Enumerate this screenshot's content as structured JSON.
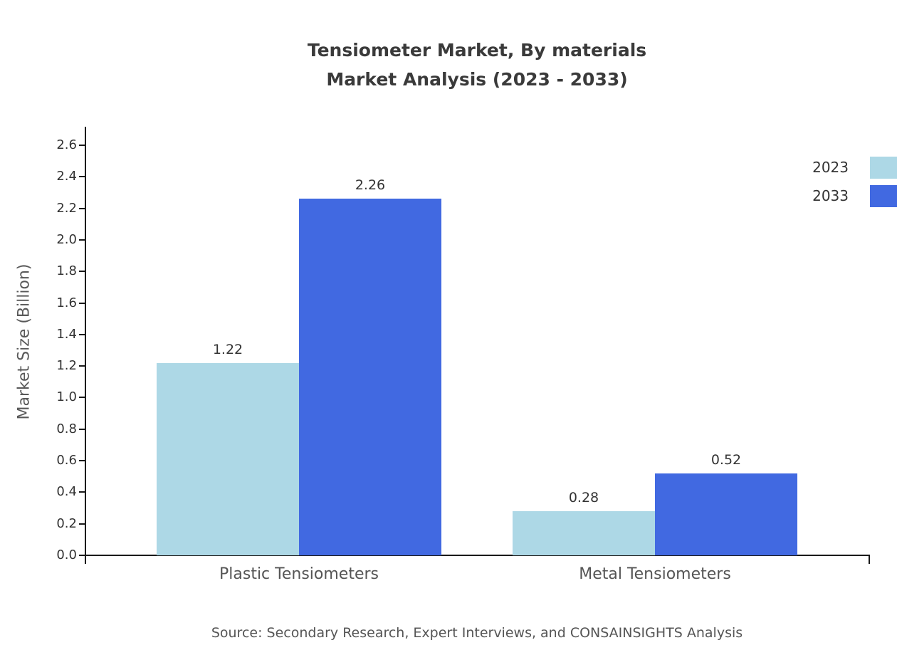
{
  "title": {
    "line1": "Tensiometer Market, By materials",
    "line2": "Market Analysis (2023 - 2033)"
  },
  "source": "Source: Secondary Research, Expert Interviews, and CONSAINSIGHTS Analysis",
  "chart_data": {
    "type": "bar",
    "title": "Tensiometer Market, By materials — Market Analysis (2023 - 2033)",
    "categories": [
      "Plastic Tensiometers",
      "Metal Tensiometers"
    ],
    "series": [
      {
        "name": "2023",
        "color": "#ADD8E6",
        "values": [
          1.22,
          0.28
        ]
      },
      {
        "name": "2033",
        "color": "#4169E1",
        "values": [
          2.26,
          0.52
        ]
      }
    ],
    "xlabel": "",
    "ylabel": "Market Size (Billion)",
    "ylim": [
      0,
      2.6
    ],
    "ytick_step": 0.2,
    "grid": false,
    "legend_position": "top-right",
    "value_labels": true
  }
}
